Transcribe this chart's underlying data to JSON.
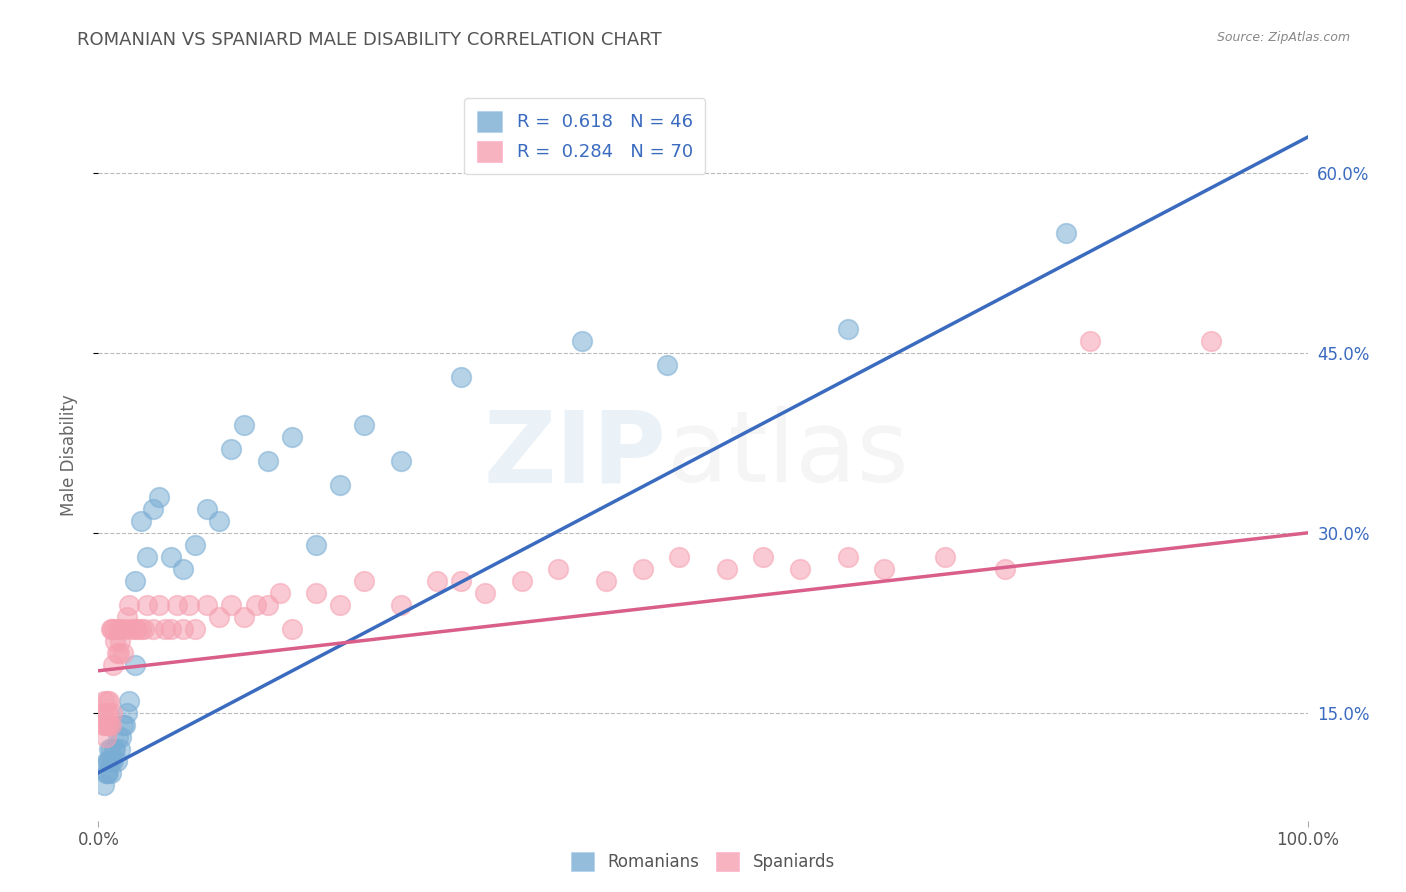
{
  "title": "ROMANIAN VS SPANIARD MALE DISABILITY CORRELATION CHART",
  "source_text": "Source: ZipAtlas.com",
  "ylabel": "Male Disability",
  "xlim": [
    0.0,
    1.0
  ],
  "ylim": [
    0.06,
    0.67
  ],
  "yticks": [
    0.15,
    0.3,
    0.45,
    0.6
  ],
  "ytick_labels": [
    "15.0%",
    "30.0%",
    "45.0%",
    "60.0%"
  ],
  "romanian_R": 0.618,
  "romanian_N": 46,
  "spaniard_R": 0.284,
  "spaniard_N": 70,
  "romanian_color": "#7aadd4",
  "spaniard_color": "#f5a0b0",
  "romanian_line_color": "#3a6bbf",
  "spaniard_line_color": "#d95f8a",
  "background_color": "#ffffff",
  "title_color": "#555555",
  "title_fontsize": 13,
  "axis_label_color": "#666666",
  "romanian_x": [
    0.005,
    0.006,
    0.007,
    0.007,
    0.008,
    0.008,
    0.009,
    0.009,
    0.01,
    0.01,
    0.01,
    0.012,
    0.013,
    0.014,
    0.015,
    0.016,
    0.018,
    0.019,
    0.02,
    0.022,
    0.024,
    0.025,
    0.03,
    0.03,
    0.035,
    0.04,
    0.045,
    0.05,
    0.06,
    0.07,
    0.08,
    0.09,
    0.1,
    0.11,
    0.12,
    0.14,
    0.16,
    0.18,
    0.2,
    0.22,
    0.25,
    0.3,
    0.4,
    0.47,
    0.62,
    0.8
  ],
  "romanian_y": [
    0.09,
    0.1,
    0.1,
    0.11,
    0.1,
    0.11,
    0.11,
    0.12,
    0.1,
    0.11,
    0.12,
    0.11,
    0.12,
    0.12,
    0.11,
    0.13,
    0.12,
    0.13,
    0.14,
    0.14,
    0.15,
    0.16,
    0.19,
    0.26,
    0.31,
    0.28,
    0.32,
    0.33,
    0.28,
    0.27,
    0.29,
    0.32,
    0.31,
    0.37,
    0.39,
    0.36,
    0.38,
    0.29,
    0.34,
    0.39,
    0.36,
    0.43,
    0.46,
    0.44,
    0.47,
    0.55
  ],
  "spaniard_x": [
    0.004,
    0.005,
    0.005,
    0.006,
    0.006,
    0.007,
    0.007,
    0.008,
    0.008,
    0.009,
    0.009,
    0.01,
    0.01,
    0.011,
    0.011,
    0.012,
    0.013,
    0.014,
    0.015,
    0.016,
    0.017,
    0.018,
    0.019,
    0.02,
    0.022,
    0.024,
    0.025,
    0.027,
    0.03,
    0.032,
    0.035,
    0.038,
    0.04,
    0.045,
    0.05,
    0.055,
    0.06,
    0.065,
    0.07,
    0.075,
    0.08,
    0.09,
    0.1,
    0.11,
    0.12,
    0.13,
    0.14,
    0.15,
    0.16,
    0.18,
    0.2,
    0.22,
    0.25,
    0.28,
    0.3,
    0.32,
    0.35,
    0.38,
    0.42,
    0.45,
    0.48,
    0.52,
    0.55,
    0.58,
    0.62,
    0.65,
    0.7,
    0.75,
    0.82,
    0.92
  ],
  "spaniard_y": [
    0.14,
    0.15,
    0.16,
    0.13,
    0.14,
    0.15,
    0.16,
    0.14,
    0.15,
    0.14,
    0.16,
    0.14,
    0.22,
    0.15,
    0.22,
    0.19,
    0.22,
    0.21,
    0.2,
    0.22,
    0.2,
    0.21,
    0.22,
    0.2,
    0.22,
    0.23,
    0.24,
    0.22,
    0.22,
    0.22,
    0.22,
    0.22,
    0.24,
    0.22,
    0.24,
    0.22,
    0.22,
    0.24,
    0.22,
    0.24,
    0.22,
    0.24,
    0.23,
    0.24,
    0.23,
    0.24,
    0.24,
    0.25,
    0.22,
    0.25,
    0.24,
    0.26,
    0.24,
    0.26,
    0.26,
    0.25,
    0.26,
    0.27,
    0.26,
    0.27,
    0.28,
    0.27,
    0.28,
    0.27,
    0.28,
    0.27,
    0.28,
    0.27,
    0.46,
    0.46
  ]
}
